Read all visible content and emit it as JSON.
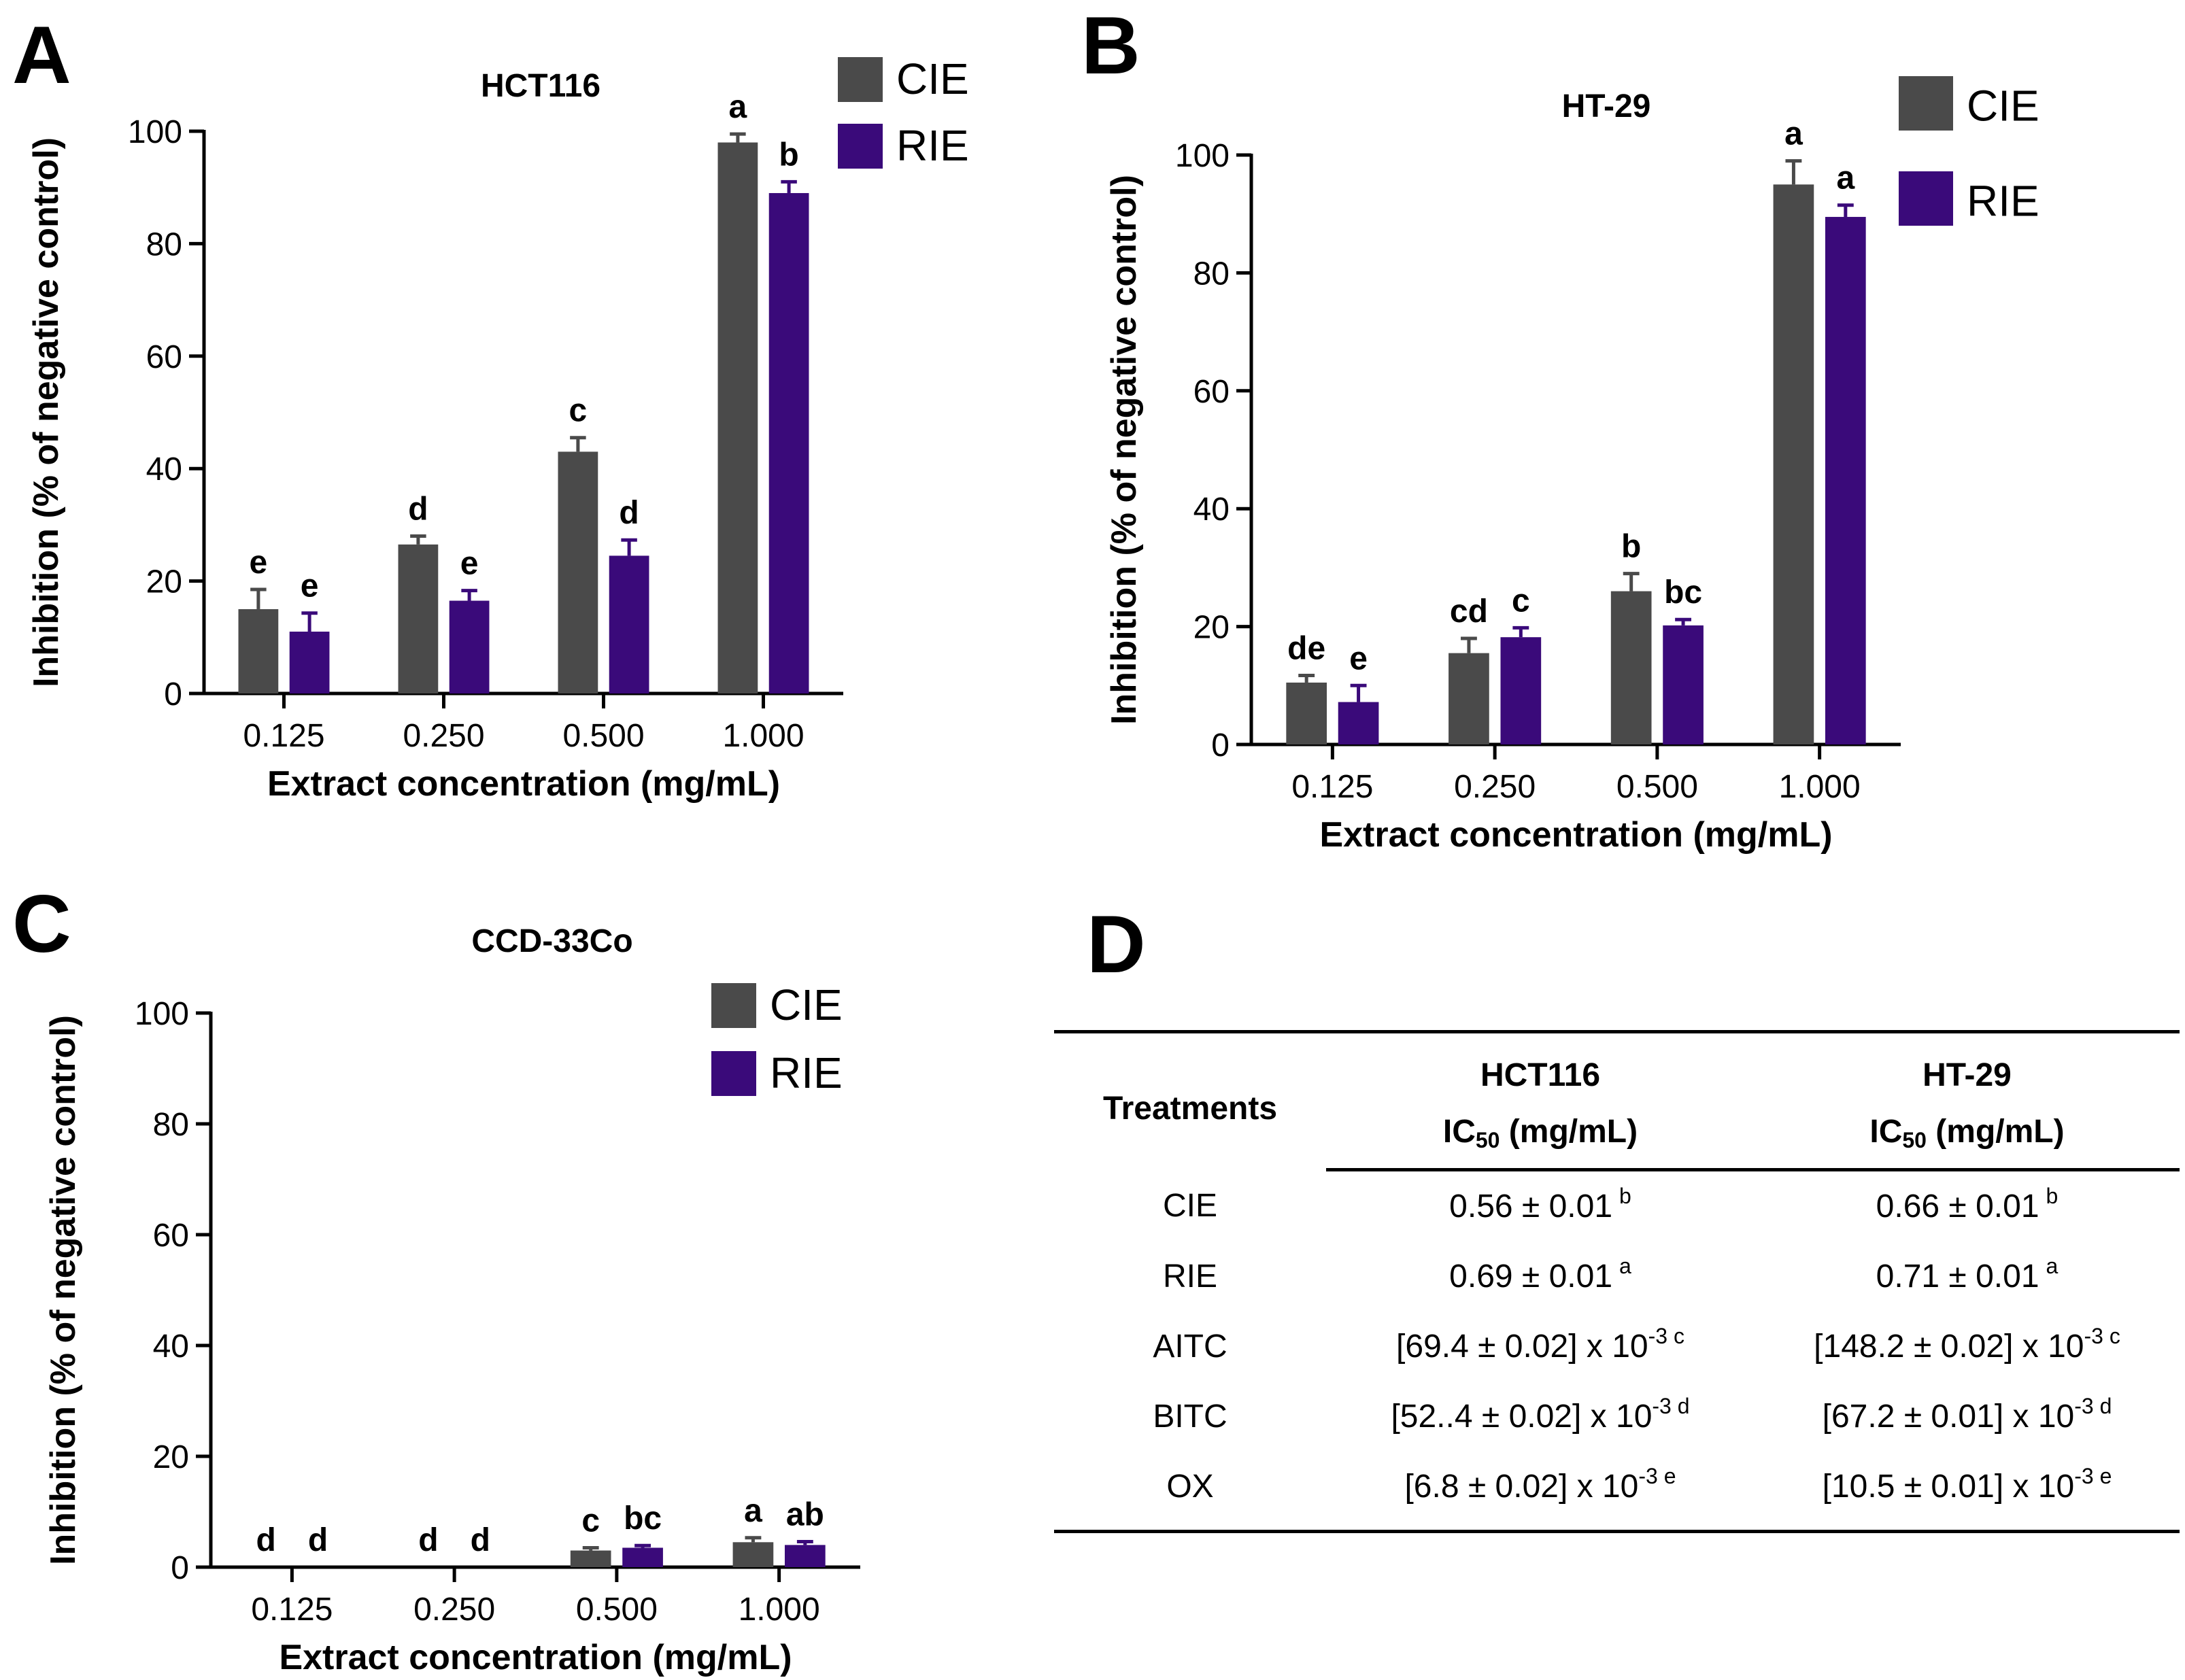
{
  "colors": {
    "cie": "#4a4a4a",
    "rie": "#3a0a7a",
    "axis": "#000000"
  },
  "panels": {
    "A": "A",
    "B": "B",
    "C": "C",
    "D": "D"
  },
  "chart_data": [
    {
      "id": "A",
      "type": "bar",
      "title": "HCT116",
      "xlabel": "Extract concentration (mg/mL)",
      "ylabel": "Inhibition (% of negative control)",
      "categories": [
        "0.125",
        "0.250",
        "0.500",
        "1.000"
      ],
      "ylim": [
        0,
        100
      ],
      "yticks": [
        "0",
        "20",
        "40",
        "60",
        "80",
        "100"
      ],
      "legend": "top-right",
      "series": [
        {
          "name": "CIE",
          "values": [
            15,
            26.5,
            43,
            98
          ],
          "errors": [
            3.5,
            1.5,
            2.5,
            1.5
          ],
          "labels": [
            "e",
            "d",
            "c",
            "a"
          ]
        },
        {
          "name": "RIE",
          "values": [
            11,
            16.5,
            24.5,
            89
          ],
          "errors": [
            3.3,
            1.8,
            2.8,
            2.0
          ],
          "labels": [
            "e",
            "e",
            "d",
            "b"
          ]
        }
      ]
    },
    {
      "id": "B",
      "type": "bar",
      "title": "HT-29",
      "xlabel": "Extract concentration (mg/mL)",
      "ylabel": "Inhibition (% of negative control)",
      "categories": [
        "0.125",
        "0.250",
        "0.500",
        "1.000"
      ],
      "ylim": [
        0,
        100
      ],
      "yticks": [
        "0",
        "20",
        "40",
        "60",
        "80",
        "100"
      ],
      "legend": "top-right",
      "series": [
        {
          "name": "CIE",
          "values": [
            10.5,
            15.5,
            26,
            95
          ],
          "errors": [
            1.2,
            2.5,
            3.0,
            4.0
          ],
          "labels": [
            "de",
            "cd",
            "b",
            "a"
          ]
        },
        {
          "name": "RIE",
          "values": [
            7.2,
            18.2,
            20.2,
            89.5
          ],
          "errors": [
            2.8,
            1.6,
            1.0,
            2.0
          ],
          "labels": [
            "e",
            "c",
            "bc",
            "a"
          ]
        }
      ]
    },
    {
      "id": "C",
      "type": "bar",
      "title": "CCD-33Co",
      "xlabel": "Extract concentration (mg/mL)",
      "ylabel": "Inhibition (% of negative control)",
      "categories": [
        "0.125",
        "0.250",
        "0.500",
        "1.000"
      ],
      "ylim": [
        0,
        100
      ],
      "yticks": [
        "0",
        "20",
        "40",
        "60",
        "80",
        "100"
      ],
      "legend": "top-right",
      "series": [
        {
          "name": "CIE",
          "values": [
            0,
            0,
            3,
            4.5
          ],
          "errors": [
            0,
            0,
            0.5,
            0.8
          ],
          "labels": [
            "d",
            "d",
            "c",
            "a"
          ]
        },
        {
          "name": "RIE",
          "values": [
            0,
            0,
            3.5,
            4
          ],
          "errors": [
            0,
            0,
            0.4,
            0.6
          ],
          "labels": [
            "d",
            "d",
            "bc",
            "ab"
          ]
        }
      ]
    },
    {
      "id": "D",
      "type": "table",
      "header": {
        "treatments": "Treatments",
        "col1": "HCT116",
        "col2": "HT-29",
        "ic_prefix": "IC",
        "ic_sub": "50",
        "ic_unit": " (mg/mL)"
      },
      "rows": [
        {
          "name": "CIE",
          "c1": "0.56 ± 0.01",
          "c1s": "b",
          "c2": "0.66 ± 0.01",
          "c2s": "b"
        },
        {
          "name": "RIE",
          "c1": "0.69 ± 0.01",
          "c1s": "a",
          "c2": "0.71 ± 0.01",
          "c2s": "a"
        },
        {
          "name": "AITC",
          "c1": "[69.4 ± 0.02]  x 10",
          "c1s": "-3 c",
          "c2": "[148.2 ± 0.02]  x 10",
          "c2s": "-3 c"
        },
        {
          "name": "BITC",
          "c1": "[52..4 ± 0.02]  x 10",
          "c1s": "-3 d",
          "c2": "[67.2 ± 0.01]  x 10",
          "c2s": "-3 d"
        },
        {
          "name": "OX",
          "c1": "[6.8 ± 0.02]  x 10",
          "c1s": "-3 e",
          "c2": "[10.5 ± 0.01]  x 10",
          "c2s": "-3 e"
        }
      ]
    }
  ]
}
